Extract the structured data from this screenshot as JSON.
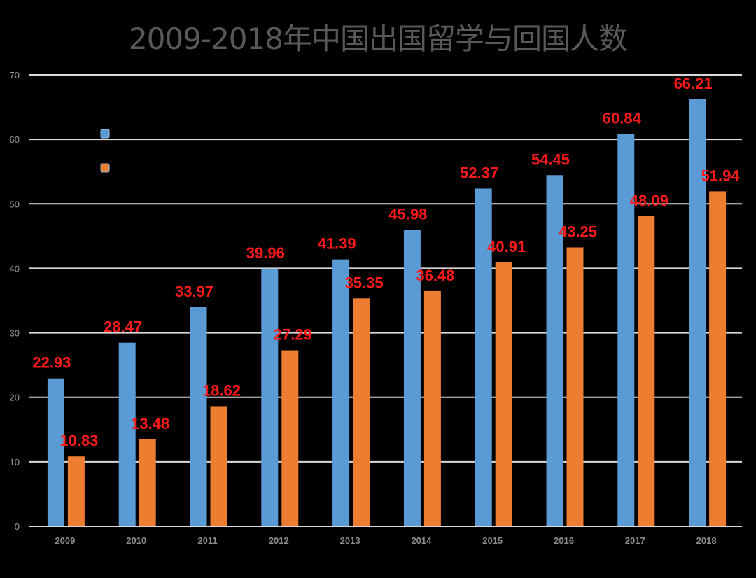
{
  "chart_data": {
    "type": "bar",
    "title": "2009-2018年中国出国留学与回国人数",
    "categories": [
      "2009",
      "2010",
      "2011",
      "2012",
      "2013",
      "2014",
      "2015",
      "2016",
      "2017",
      "2018"
    ],
    "series": [
      {
        "color": "#5b9bd5",
        "values": [
          22.93,
          28.47,
          33.97,
          39.96,
          41.39,
          45.98,
          52.37,
          54.45,
          60.84,
          66.21
        ],
        "labels": [
          "22.93",
          "28.47",
          "33.97",
          "39.96",
          "41.39",
          "45.98",
          "52.37",
          "54.45",
          "60.84",
          "66.21"
        ]
      },
      {
        "color": "#ed7d31",
        "values": [
          10.83,
          13.48,
          18.62,
          27.29,
          35.35,
          36.48,
          40.91,
          43.25,
          48.09,
          51.94
        ],
        "labels": [
          "10.83",
          "13.48",
          "18.62",
          "27.29",
          "35.35",
          "36.48",
          "40.91",
          "43.25",
          "48.09",
          "51.94"
        ]
      }
    ],
    "yticks": [
      "0",
      "10",
      "20",
      "30",
      "40",
      "50",
      "60",
      "70"
    ],
    "ylim": [
      0,
      70
    ],
    "grid": true,
    "legend_position": "top-left",
    "data_label_color": "#ff1a1a",
    "background": "#000000",
    "gridline_color": "#d9d9d9"
  }
}
